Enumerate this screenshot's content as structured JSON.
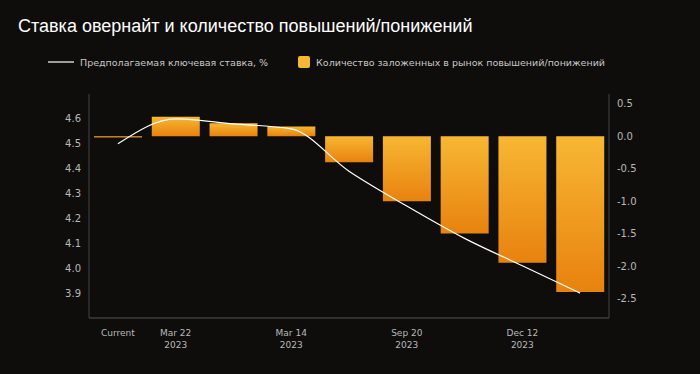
{
  "chart_data": {
    "type": "bar",
    "title": "Ставка овернайт и количество повышений/понижений",
    "categories": [
      "Current",
      "Mar 22 2023",
      null,
      "Mar 14 2023",
      null,
      "Sep 20 2023",
      null,
      "Dec 12 2023",
      null
    ],
    "series": [
      {
        "name": "Предполагаемая ключевая ставка, %",
        "type": "line",
        "color": "#ffffff",
        "marker": "none",
        "values": [
          4.5,
          4.6,
          4.58,
          4.56,
          4.39,
          4.25,
          4.12,
          4.01,
          3.9
        ]
      },
      {
        "name": "Количество заложенных в рынок повышений/понижений",
        "type": "bar",
        "color": "#f7b733",
        "axis": "y2",
        "values": [
          -0.02,
          0.3,
          0.2,
          0.15,
          -0.4,
          -1.0,
          -1.5,
          -1.95,
          -2.4
        ]
      }
    ],
    "ylim": [
      3.8,
      4.7
    ],
    "yticks": [
      4.6,
      4.5,
      4.4,
      4.3,
      4.2,
      4.1,
      {
        "value": 4,
        "label": "4.0"
      },
      3.9
    ],
    "y2lim": [
      -2.8,
      0.65
    ],
    "y2ticks": [
      0.5,
      {
        "value": 0,
        "label": "0.0"
      },
      -0.5,
      {
        "value": -1,
        "label": "-1.0"
      },
      -1.5,
      {
        "value": -2,
        "label": "-2.0"
      },
      -2.5
    ],
    "grid": false,
    "legend": "top-left"
  }
}
